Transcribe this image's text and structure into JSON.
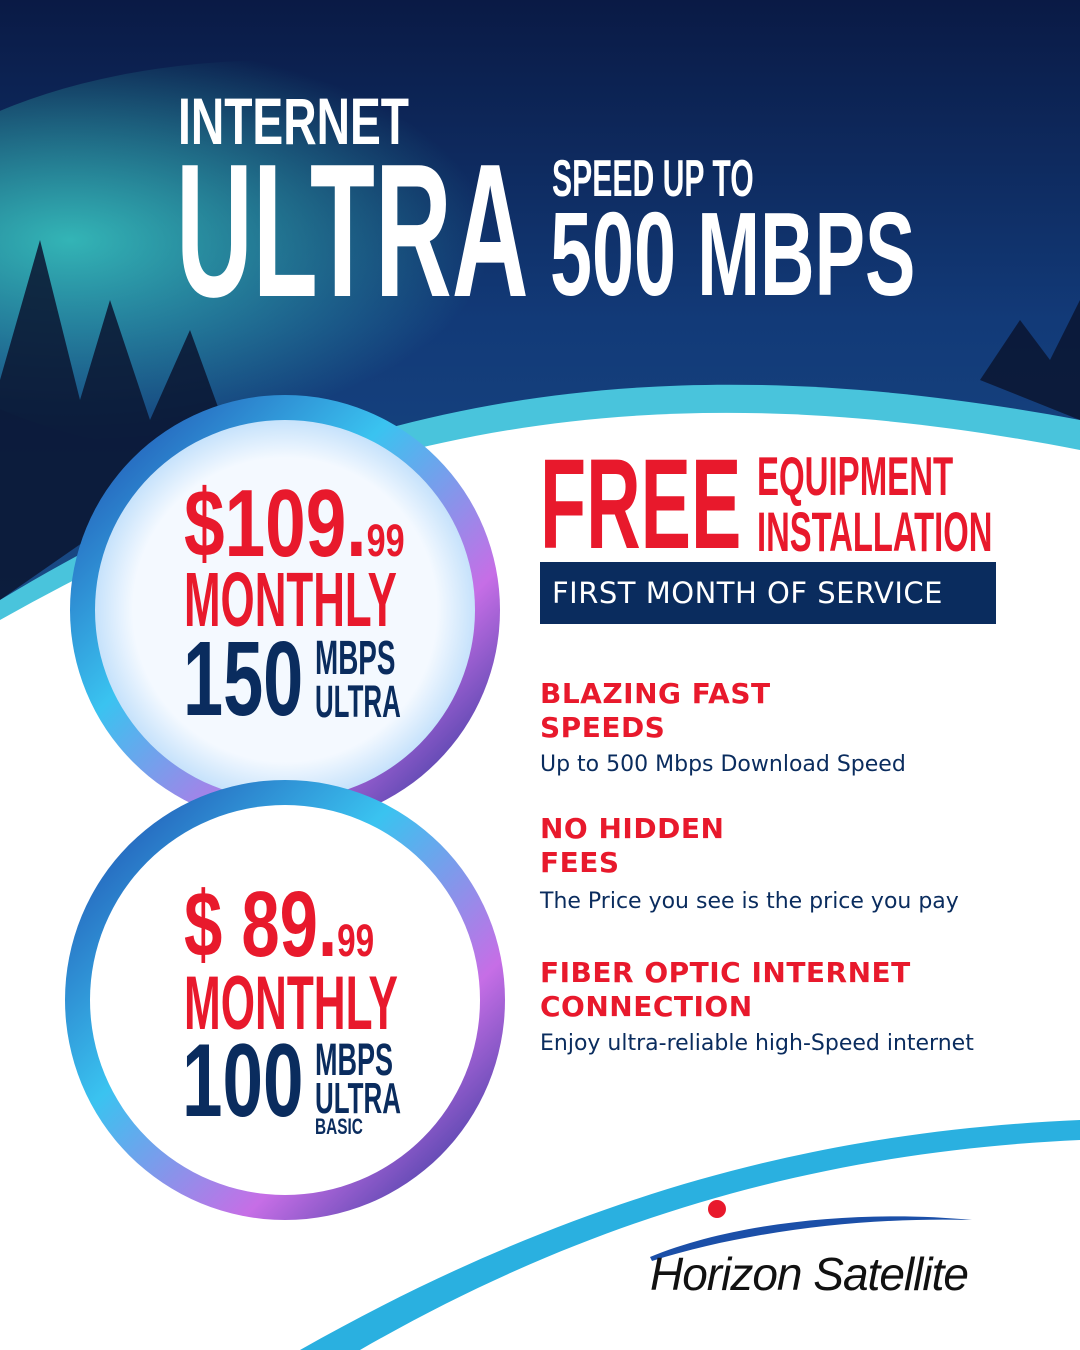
{
  "hero": {
    "line1": "INTERNET",
    "line2": "ULTRA",
    "speed_label": "SPEED UP TO",
    "speed_value": "500 MBPS"
  },
  "plans": [
    {
      "currency": "$",
      "price_whole": "109.",
      "price_cents": "99",
      "period": "MONTHLY",
      "speed": "150",
      "unit": "MBPS",
      "tier": "ULTRA",
      "subtier": ""
    },
    {
      "currency": "$",
      "price_whole": "89.",
      "price_cents": "99",
      "period": "MONTHLY",
      "speed": "100",
      "unit": "MBPS",
      "tier": "ULTRA",
      "subtier": "BASIC"
    }
  ],
  "offer": {
    "free": "FREE",
    "item1": "EQUIPMENT",
    "item2": "INSTALLATION",
    "banner": "FIRST MONTH OF SERVICE"
  },
  "features": [
    {
      "title_l1": "BLAZING FAST",
      "title_l2": "SPEEDS",
      "desc": "Up to 500 Mbps Download Speed"
    },
    {
      "title_l1": "NO HIDDEN",
      "title_l2": "FEES",
      "desc": "The Price you see is the price you pay"
    },
    {
      "title_l1": "FIBER OPTIC INTERNET",
      "title_l2": "CONNECTION",
      "desc": "Enjoy ultra-reliable high-Speed internet"
    }
  ],
  "brand": {
    "name": "Horizon Satellite"
  },
  "colors": {
    "red": "#e8192c",
    "navy": "#0a2c5e",
    "sky_top": "#0b1d4a",
    "aurora": "#2fd3c8",
    "wave": "#2ab0e0"
  }
}
